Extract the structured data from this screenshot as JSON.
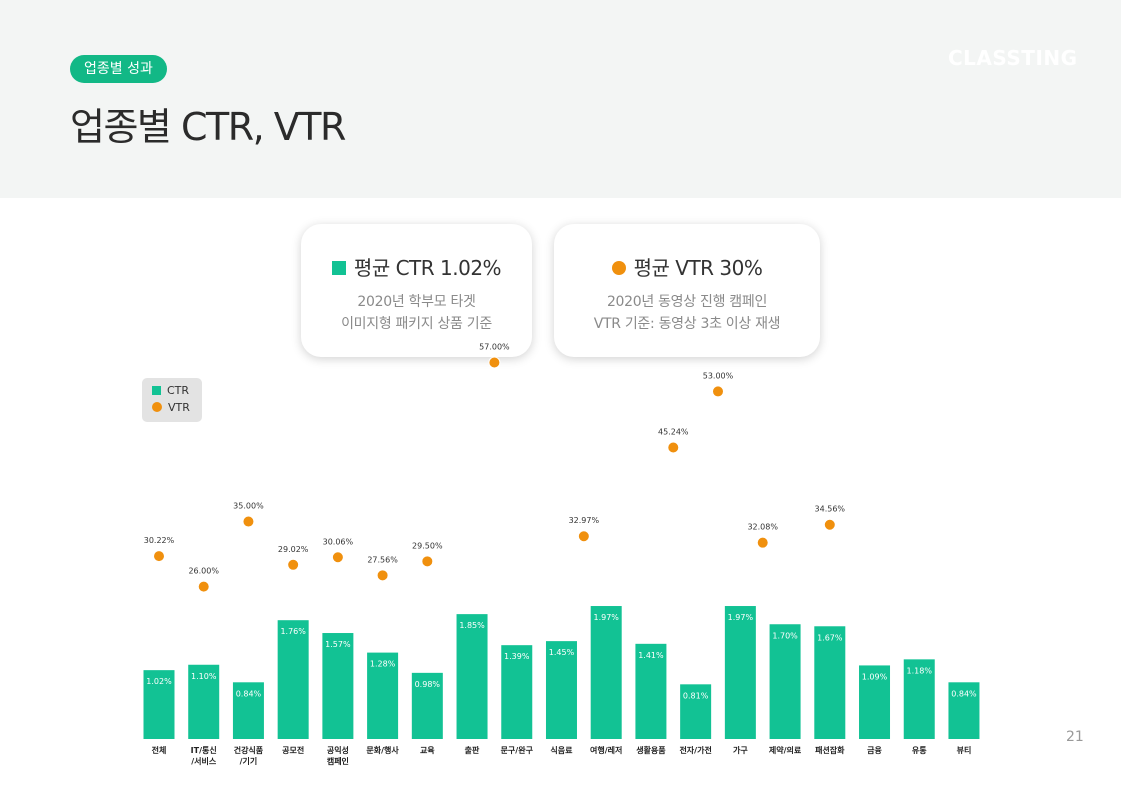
{
  "header": {
    "badge": "업종별 성과",
    "title": "업종별 CTR, VTR",
    "logo": "CLASSTING"
  },
  "cards": [
    {
      "title": "평균 CTR 1.02%",
      "line1": "2020년 학부모 타겟",
      "line2": "이미지형 패키지 상품 기준"
    },
    {
      "title": "평균 VTR 30%",
      "line1": "2020년 동영상 진행 캠페인",
      "line2": "VTR 기준: 동영상 3초 이상 재생"
    }
  ],
  "legend": {
    "ctr": "CTR",
    "vtr": "VTR"
  },
  "page_number": "21",
  "colors": {
    "ctr_bar": "#12c294",
    "vtr_dot": "#f0900e"
  },
  "chart_data": {
    "type": "bar",
    "categories": [
      [
        "전체"
      ],
      [
        "IT/통신",
        "/서비스"
      ],
      [
        "건강식품",
        "/기기"
      ],
      [
        "공모전"
      ],
      [
        "공익성",
        "캠페인"
      ],
      [
        "문화/행사"
      ],
      [
        "교육"
      ],
      [
        "출판"
      ],
      [
        "문구/완구"
      ],
      [
        "식음료"
      ],
      [
        "여행/레저"
      ],
      [
        "생활용품"
      ],
      [
        "전자/가전"
      ],
      [
        "가구"
      ],
      [
        "제약/의료"
      ],
      [
        "패션잡화"
      ],
      [
        "금융"
      ],
      [
        "유통"
      ],
      [
        "뷰티"
      ]
    ],
    "series": [
      {
        "name": "CTR",
        "kind": "bar",
        "values": [
          1.02,
          1.1,
          0.84,
          1.76,
          1.57,
          1.28,
          0.98,
          1.85,
          1.39,
          1.45,
          1.97,
          1.41,
          0.81,
          1.97,
          1.7,
          1.67,
          1.09,
          1.18,
          0.84
        ],
        "labels": [
          "1.02%",
          "1.10%",
          "0.84%",
          "1.76%",
          "1.57%",
          "1.28%",
          "0.98%",
          "1.85%",
          "1.39%",
          "1.45%",
          "1.97%",
          "1.41%",
          "0.81%",
          "1.97%",
          "1.70%",
          "1.67%",
          "1.09%",
          "1.18%",
          "0.84%"
        ]
      },
      {
        "name": "VTR",
        "kind": "dot",
        "values": [
          30.22,
          26.0,
          35.0,
          29.02,
          30.06,
          27.56,
          29.5,
          null,
          null,
          null,
          null,
          null,
          null,
          null,
          null,
          34.56,
          null,
          null,
          null
        ],
        "labels": [
          "30.22%",
          "26.00%",
          "35.00%",
          "29.02%",
          "30.06%",
          "27.56%",
          "29.50%",
          null,
          null,
          null,
          null,
          null,
          null,
          null,
          null,
          "34.56%",
          null,
          null,
          null
        ]
      },
      {
        "name": "VTR",
        "kind": "dot-offset",
        "points": [
          {
            "between": [
              7,
              8
            ],
            "value": 57.0,
            "label": "57.00%"
          },
          {
            "between": [
              9,
              10
            ],
            "value": 32.97,
            "label": "32.97%"
          },
          {
            "between": [
              11,
              12
            ],
            "value": 45.24,
            "label": "45.24%"
          },
          {
            "between": [
              12,
              13
            ],
            "value": 53.0,
            "label": "53.00%"
          },
          {
            "between": [
              13,
              14
            ],
            "value": 32.08,
            "label": "32.08%"
          }
        ]
      }
    ]
  }
}
